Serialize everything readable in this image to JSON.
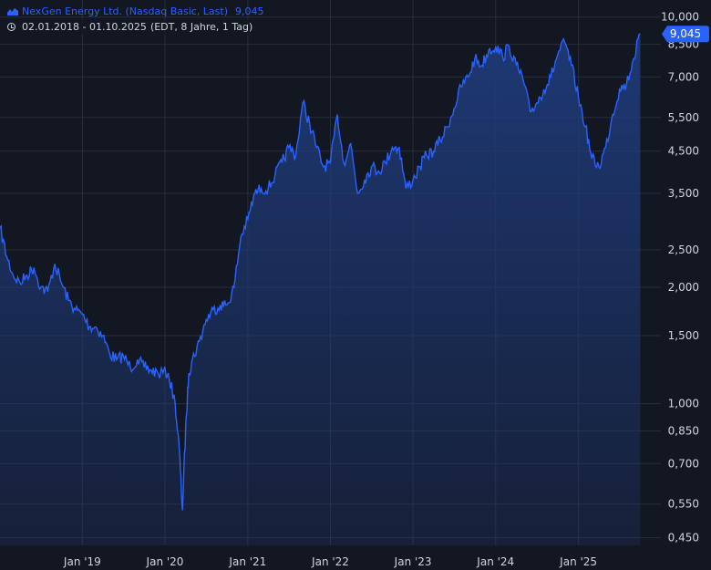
{
  "legend": {
    "title": "NexGen Energy Ltd. (Nasdaq Basic, Last)",
    "last_value": "9,045",
    "range": "02.01.2018 - 01.10.2025",
    "range_note": "(EDT, 8 Jahre, 1 Tag)",
    "series_icon": "area-chart-icon",
    "range_icon": "clock-icon"
  },
  "colors": {
    "background": "#131722",
    "grid": "#2a2e39",
    "line": "#2962ff",
    "fill_top": "#1e3a78",
    "text": "#d1d4dc",
    "badge": "#2962ff"
  },
  "chart_data": {
    "type": "area",
    "y_scale": "log",
    "ylim": [
      0.43,
      10.6
    ],
    "xlim": [
      "2018-01-02",
      "2025-12-31"
    ],
    "grid": true,
    "x_ticks": [
      {
        "label": "Jan '19",
        "x": "2019-01-01"
      },
      {
        "label": "Jan '20",
        "x": "2020-01-01"
      },
      {
        "label": "Jan '21",
        "x": "2021-01-01"
      },
      {
        "label": "Jan '22",
        "x": "2022-01-01"
      },
      {
        "label": "Jan '23",
        "x": "2023-01-01"
      },
      {
        "label": "Jan '24",
        "x": "2024-01-01"
      },
      {
        "label": "Jan '25",
        "x": "2025-01-01"
      }
    ],
    "y_ticks": [
      {
        "label": "10,000",
        "value": 10.0
      },
      {
        "label": "8,500",
        "value": 8.5
      },
      {
        "label": "7,000",
        "value": 7.0
      },
      {
        "label": "5,500",
        "value": 5.5
      },
      {
        "label": "4,500",
        "value": 4.5
      },
      {
        "label": "3,500",
        "value": 3.5
      },
      {
        "label": "2,500",
        "value": 2.5
      },
      {
        "label": "2,000",
        "value": 2.0
      },
      {
        "label": "1,500",
        "value": 1.5
      },
      {
        "label": "1,000",
        "value": 1.0
      },
      {
        "label": "0,850",
        "value": 0.85
      },
      {
        "label": "0,700",
        "value": 0.7
      },
      {
        "label": "0,550",
        "value": 0.55
      },
      {
        "label": "0,450",
        "value": 0.45
      }
    ],
    "last_price": {
      "label": "9,045",
      "value": 9.045
    },
    "x": [
      "2018-01-02",
      "2018-02-01",
      "2018-03-01",
      "2018-04-01",
      "2018-05-01",
      "2018-06-01",
      "2018-07-01",
      "2018-08-01",
      "2018-09-01",
      "2018-10-01",
      "2018-11-01",
      "2018-12-01",
      "2019-01-01",
      "2019-02-01",
      "2019-03-01",
      "2019-04-01",
      "2019-05-01",
      "2019-06-01",
      "2019-07-01",
      "2019-08-01",
      "2019-09-01",
      "2019-10-01",
      "2019-11-01",
      "2019-12-01",
      "2020-01-15",
      "2020-02-15",
      "2020-03-05",
      "2020-03-18",
      "2020-04-01",
      "2020-04-15",
      "2020-05-01",
      "2020-06-01",
      "2020-07-01",
      "2020-08-01",
      "2020-09-01",
      "2020-10-01",
      "2020-11-01",
      "2020-12-01",
      "2021-01-01",
      "2021-02-01",
      "2021-03-01",
      "2021-04-01",
      "2021-05-01",
      "2021-06-01",
      "2021-07-01",
      "2021-08-01",
      "2021-09-01",
      "2021-10-01",
      "2021-11-01",
      "2021-12-01",
      "2022-01-01",
      "2022-02-01",
      "2022-03-01",
      "2022-04-01",
      "2022-05-01",
      "2022-06-01",
      "2022-07-01",
      "2022-08-01",
      "2022-09-01",
      "2022-10-01",
      "2022-11-01",
      "2022-12-01",
      "2023-01-01",
      "2023-02-01",
      "2023-03-01",
      "2023-04-01",
      "2023-05-01",
      "2023-06-01",
      "2023-07-01",
      "2023-08-01",
      "2023-09-01",
      "2023-10-01",
      "2023-11-01",
      "2023-12-01",
      "2024-01-01",
      "2024-02-01",
      "2024-03-01",
      "2024-04-01",
      "2024-05-01",
      "2024-06-01",
      "2024-07-01",
      "2024-08-01",
      "2024-09-01",
      "2024-10-01",
      "2024-11-01",
      "2024-12-01",
      "2025-01-01",
      "2025-02-01",
      "2025-03-01",
      "2025-04-01",
      "2025-05-01",
      "2025-06-01",
      "2025-07-01",
      "2025-08-01",
      "2025-09-01",
      "2025-10-01"
    ],
    "y": [
      2.85,
      2.4,
      2.15,
      2.05,
      2.15,
      2.25,
      2.0,
      1.95,
      2.3,
      2.05,
      1.85,
      1.75,
      1.7,
      1.58,
      1.58,
      1.5,
      1.35,
      1.3,
      1.33,
      1.24,
      1.3,
      1.24,
      1.22,
      1.2,
      1.2,
      1.0,
      0.75,
      0.53,
      0.85,
      1.2,
      1.3,
      1.45,
      1.65,
      1.75,
      1.8,
      1.8,
      2.0,
      2.7,
      3.0,
      3.5,
      3.6,
      3.6,
      3.9,
      4.2,
      4.6,
      4.4,
      6.0,
      5.3,
      4.6,
      4.1,
      4.2,
      5.6,
      4.2,
      4.7,
      3.5,
      3.8,
      4.1,
      4.0,
      4.2,
      4.6,
      4.6,
      3.6,
      3.8,
      4.1,
      4.4,
      4.5,
      4.8,
      5.2,
      5.8,
      6.6,
      7.0,
      7.8,
      7.5,
      8.2,
      8.4,
      7.9,
      8.4,
      7.5,
      6.9,
      5.7,
      6.0,
      6.5,
      7.0,
      8.0,
      8.6,
      7.5,
      6.2,
      5.2,
      4.3,
      4.1,
      4.6,
      5.6,
      6.5,
      6.7,
      7.8,
      9.045
    ]
  }
}
